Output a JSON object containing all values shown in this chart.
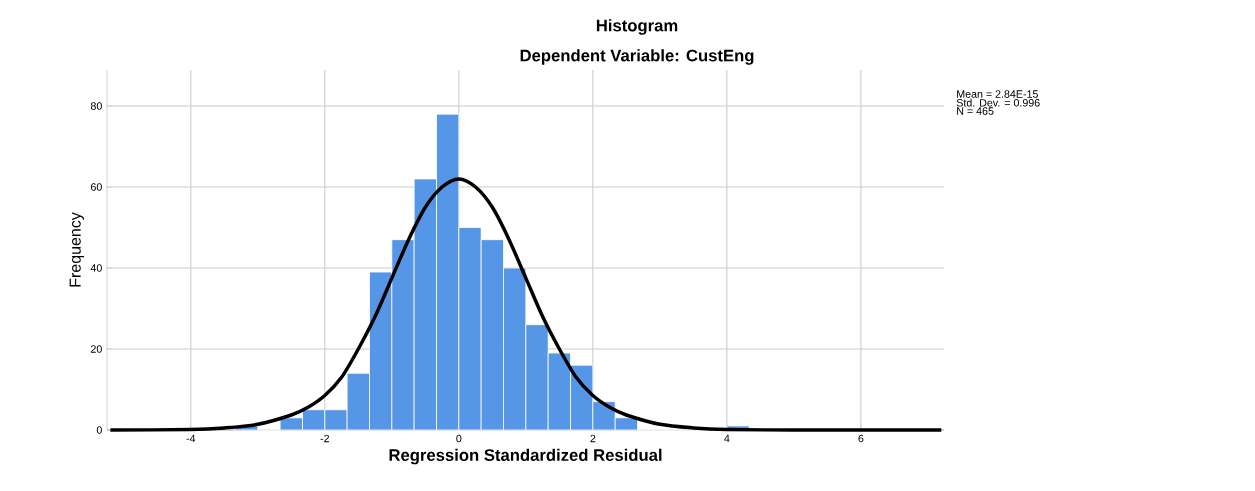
{
  "chart_data": {
    "type": "histogram",
    "title": "Histogram",
    "subtitle": "Dependent Variable: CustEng",
    "xlabel": "Regression Standardized Residual",
    "ylabel": "Frequency",
    "bins": [
      -3.333,
      -3,
      -2.667,
      -2.333,
      -2,
      -1.667,
      -1.333,
      -1,
      -0.667,
      -0.333,
      0,
      0.333,
      0.667,
      1,
      1.333,
      1.667,
      2,
      2.333,
      2.667,
      3,
      3.333,
      3.667,
      4,
      4.333
    ],
    "values": [
      1,
      0,
      3,
      5,
      5,
      14,
      39,
      47,
      62,
      78,
      50,
      47,
      40,
      26,
      19,
      16,
      7,
      3,
      0,
      0,
      0,
      0,
      1
    ],
    "color": "#5596e6",
    "series": [
      {
        "type": "line",
        "color": "#000000",
        "x": [
          -5.2,
          -4,
          -3.5,
          -3,
          -2.5,
          -2.25,
          -2,
          -1.75,
          -1.5,
          -1.25,
          -1,
          -0.75,
          -0.5,
          -0.25,
          0,
          0.25,
          0.5,
          0.75,
          1,
          1.25,
          1.5,
          1.75,
          2,
          2.25,
          2.5,
          3,
          3.5,
          4,
          5,
          6,
          7.2
        ],
        "values": [
          0,
          0.1,
          0.5,
          1.4,
          3.7,
          5.6,
          8.5,
          13,
          20,
          28,
          37.5,
          47,
          55,
          60,
          62,
          60,
          55,
          47,
          37.5,
          28,
          20,
          13,
          8.5,
          5.6,
          3.7,
          1.4,
          0.5,
          0.1,
          0,
          0,
          0
        ]
      }
    ],
    "xlim": [
      -5.25,
      7.24
    ],
    "ylim": [
      0,
      88.9
    ],
    "xticks": [
      -4,
      -2,
      0,
      2,
      4,
      6
    ],
    "yticks": [
      0,
      20,
      40,
      60,
      80
    ],
    "grid": true,
    "annotations": [
      "Mean = 2.84E-15",
      "Std. Dev. = 0.996",
      "N = 465"
    ]
  }
}
